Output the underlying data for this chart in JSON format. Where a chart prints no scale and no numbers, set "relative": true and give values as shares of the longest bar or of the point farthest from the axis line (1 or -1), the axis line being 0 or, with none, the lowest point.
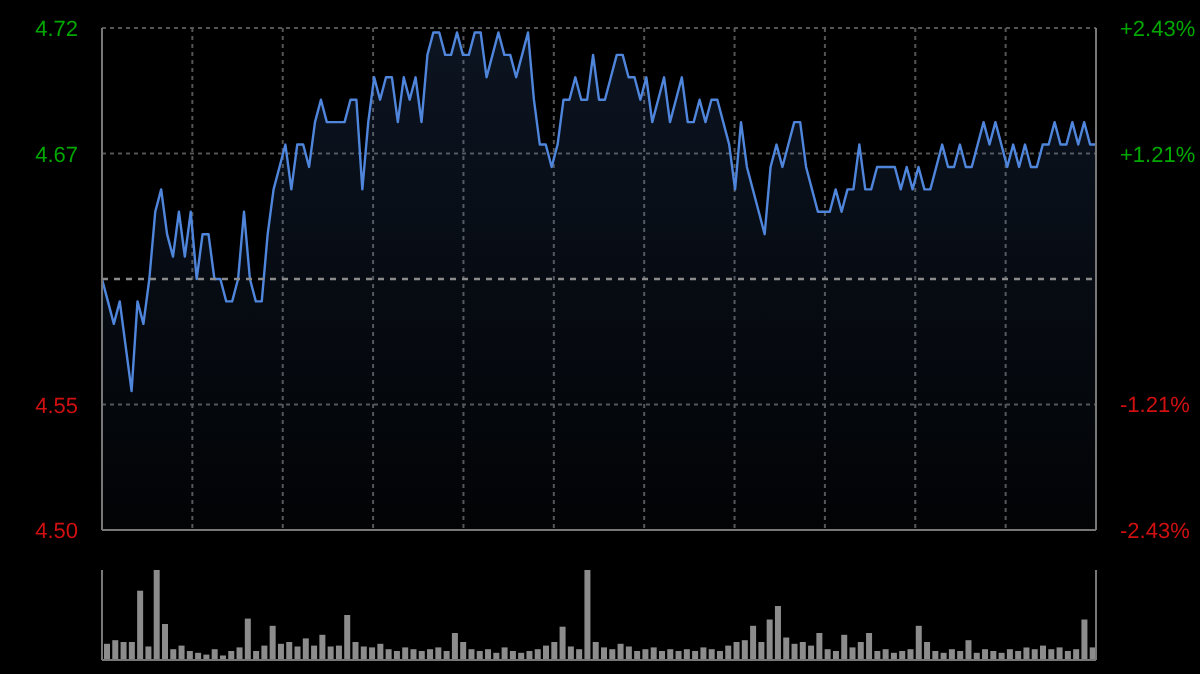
{
  "chart_data": [
    {
      "type": "area",
      "categories": [
        null,
        null,
        null,
        null,
        null,
        null,
        null,
        null,
        null,
        null,
        null,
        null,
        null,
        null,
        null,
        null,
        null,
        null,
        null,
        null,
        null,
        null,
        null,
        null,
        null,
        null,
        null,
        null,
        null,
        null,
        null,
        null,
        null,
        null,
        null,
        null,
        null,
        null,
        null,
        null,
        null,
        null,
        null,
        null,
        null,
        null,
        null,
        null,
        null,
        null,
        null,
        null,
        null,
        null,
        null,
        null,
        null,
        null,
        null,
        null,
        null,
        null,
        null,
        null,
        null,
        null,
        null,
        null,
        null,
        null,
        null,
        null,
        null,
        null,
        null,
        null,
        null,
        null,
        null,
        null,
        null,
        null,
        null,
        null,
        null,
        null,
        null,
        null,
        null,
        null,
        null,
        null,
        null,
        null,
        null,
        null,
        null,
        null,
        null,
        null,
        null,
        null,
        null,
        null,
        null,
        null,
        null,
        null,
        null,
        null,
        null,
        null,
        null,
        null,
        null,
        null,
        null,
        null,
        null,
        null,
        null,
        null,
        null,
        null,
        null,
        null,
        null,
        null,
        null,
        null,
        null,
        null,
        null,
        null,
        null,
        null,
        null,
        null,
        null,
        null,
        null,
        null,
        null,
        null,
        null,
        null,
        null,
        null,
        null,
        null,
        null,
        null,
        null,
        null,
        null,
        null,
        null,
        null,
        null,
        null,
        null,
        null,
        null,
        null,
        null,
        null,
        null,
        null,
        null
      ],
      "values": [
        4.61,
        4.6,
        4.59,
        4.6,
        4.58,
        4.56,
        4.6,
        4.59,
        4.61,
        4.64,
        4.65,
        4.63,
        4.62,
        4.64,
        4.62,
        4.64,
        4.61,
        4.63,
        4.63,
        4.61,
        4.61,
        4.6,
        4.6,
        4.61,
        4.64,
        4.61,
        4.6,
        4.6,
        4.63,
        4.65,
        4.66,
        4.67,
        4.65,
        4.67,
        4.67,
        4.66,
        4.68,
        4.69,
        4.68,
        4.68,
        4.68,
        4.68,
        4.69,
        4.69,
        4.65,
        4.68,
        4.7,
        4.69,
        4.7,
        4.7,
        4.68,
        4.7,
        4.69,
        4.7,
        4.68,
        4.71,
        4.72,
        4.72,
        4.71,
        4.71,
        4.72,
        4.71,
        4.71,
        4.72,
        4.72,
        4.7,
        4.71,
        4.72,
        4.71,
        4.71,
        4.7,
        4.71,
        4.72,
        4.69,
        4.67,
        4.67,
        4.66,
        4.67,
        4.69,
        4.69,
        4.7,
        4.69,
        4.69,
        4.71,
        4.69,
        4.69,
        4.7,
        4.71,
        4.71,
        4.7,
        4.7,
        4.69,
        4.7,
        4.68,
        4.69,
        4.7,
        4.68,
        4.69,
        4.7,
        4.68,
        4.68,
        4.69,
        4.68,
        4.69,
        4.69,
        4.68,
        4.67,
        4.65,
        4.68,
        4.66,
        4.65,
        4.64,
        4.63,
        4.66,
        4.67,
        4.66,
        4.67,
        4.68,
        4.68,
        4.66,
        4.65,
        4.64,
        4.64,
        4.64,
        4.65,
        4.64,
        4.65,
        4.65,
        4.67,
        4.65,
        4.65,
        4.66,
        4.66,
        4.66,
        4.66,
        4.65,
        4.66,
        4.65,
        4.66,
        4.65,
        4.65,
        4.66,
        4.67,
        4.66,
        4.66,
        4.67,
        4.66,
        4.66,
        4.67,
        4.68,
        4.67,
        4.68,
        4.67,
        4.66,
        4.67,
        4.66,
        4.67,
        4.66,
        4.66,
        4.67,
        4.67,
        4.68,
        4.67,
        4.67,
        4.68,
        4.67,
        4.68,
        4.67,
        4.67
      ],
      "color": "#4f86dc",
      "ylim": [
        4.498,
        4.722
      ],
      "yticks": [
        {
          "value": 4.498,
          "label": "4.50"
        },
        {
          "value": 4.554,
          "label": "4.55"
        },
        {
          "value": 4.666,
          "label": "4.67"
        },
        {
          "value": 4.722,
          "label": "4.72"
        }
      ],
      "y2lim": [
        -2.43,
        2.43
      ],
      "y2ticks": [
        {
          "value": -2.43,
          "label": "-2.43%"
        },
        {
          "value": -1.21,
          "label": "-1.21%"
        },
        {
          "value": 1.21,
          "label": "+1.21%"
        },
        {
          "value": 2.43,
          "label": "+2.43%"
        }
      ],
      "ref_lines": [
        {
          "axis": "y",
          "value": 4.61,
          "line_style": "dashed"
        }
      ],
      "grid": true,
      "tick_labels": "y"
    },
    {
      "type": "bar",
      "relative": true,
      "color": "#8c8c8c",
      "tick_labels": false,
      "categories": [
        null,
        null,
        null,
        null,
        null,
        null,
        null,
        null,
        null,
        null,
        null,
        null,
        null,
        null,
        null,
        null,
        null,
        null,
        null,
        null,
        null,
        null,
        null,
        null,
        null,
        null,
        null,
        null,
        null,
        null,
        null,
        null,
        null,
        null,
        null,
        null,
        null,
        null,
        null,
        null,
        null,
        null,
        null,
        null,
        null,
        null,
        null,
        null,
        null,
        null,
        null,
        null,
        null,
        null,
        null,
        null,
        null,
        null,
        null,
        null,
        null,
        null,
        null,
        null,
        null,
        null,
        null,
        null,
        null,
        null,
        null,
        null,
        null,
        null,
        null,
        null,
        null,
        null,
        null,
        null,
        null,
        null,
        null,
        null,
        null,
        null,
        null,
        null,
        null,
        null,
        null,
        null,
        null,
        null,
        null,
        null,
        null,
        null,
        null,
        null,
        null,
        null,
        null,
        null,
        null,
        null,
        null,
        null,
        null,
        null,
        null,
        null,
        null,
        null,
        null,
        null,
        null,
        null,
        null,
        null
      ],
      "values": [
        0.18,
        0.22,
        0.2,
        0.2,
        0.77,
        0.15,
        1,
        0.4,
        0.12,
        0.16,
        0.1,
        0.08,
        0.06,
        0.12,
        0.05,
        0.1,
        0.14,
        0.46,
        0.1,
        0.16,
        0.38,
        0.18,
        0.2,
        0.15,
        0.24,
        0.16,
        0.28,
        0.15,
        0.16,
        0.5,
        0.2,
        0.15,
        0.14,
        0.18,
        0.12,
        0.1,
        0.14,
        0.12,
        0.1,
        0.12,
        0.14,
        0.1,
        0.3,
        0.2,
        0.12,
        0.1,
        0.12,
        0.08,
        0.14,
        0.1,
        0.08,
        0.1,
        0.12,
        0.16,
        0.2,
        0.37,
        0.15,
        0.12,
        1,
        0.2,
        0.14,
        0.12,
        0.18,
        0.15,
        0.1,
        0.12,
        0.14,
        0.1,
        0.12,
        0.1,
        0.12,
        0.1,
        0.14,
        0.12,
        0.1,
        0.16,
        0.2,
        0.22,
        0.38,
        0.2,
        0.45,
        0.6,
        0.25,
        0.18,
        0.2,
        0.16,
        0.3,
        0.12,
        0.1,
        0.28,
        0.14,
        0.2,
        0.3,
        0.1,
        0.12,
        0.08,
        0.1,
        0.12,
        0.38,
        0.2,
        0.1,
        0.08,
        0.12,
        0.1,
        0.22,
        0.08,
        0.12,
        0.1,
        0.08,
        0.12,
        0.1,
        0.14,
        0.12,
        0.16,
        0.12,
        0.14,
        0.1,
        0.12,
        0.45,
        0.14
      ]
    }
  ]
}
